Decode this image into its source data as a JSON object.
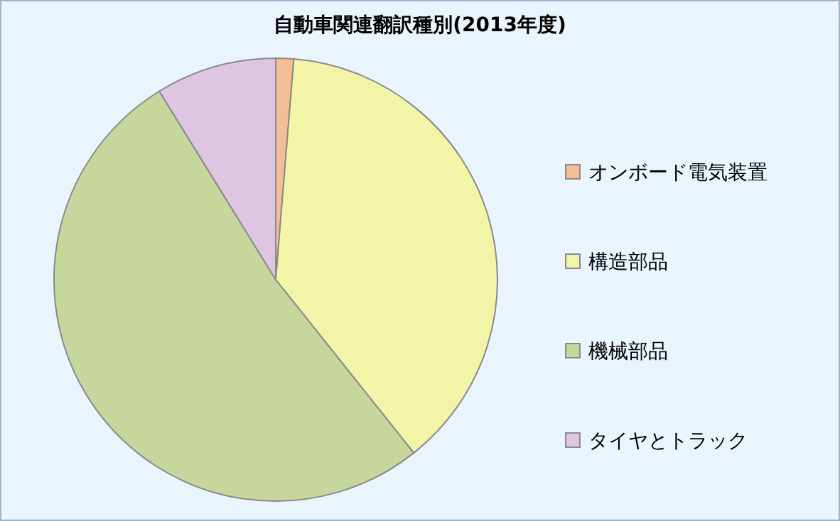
{
  "chart_data": {
    "type": "pie",
    "title": "自動車関連翻訳種別(2013年度)",
    "categories": [
      "オンボード電気装置",
      "構造部品",
      "機械部品",
      "タイヤとトラック"
    ],
    "values": [
      1.3,
      38,
      51.9,
      8.8
    ],
    "colors": [
      "#f5bd95",
      "#f2f5a8",
      "#c6d69c",
      "#dec5e1"
    ],
    "legend": "right"
  }
}
